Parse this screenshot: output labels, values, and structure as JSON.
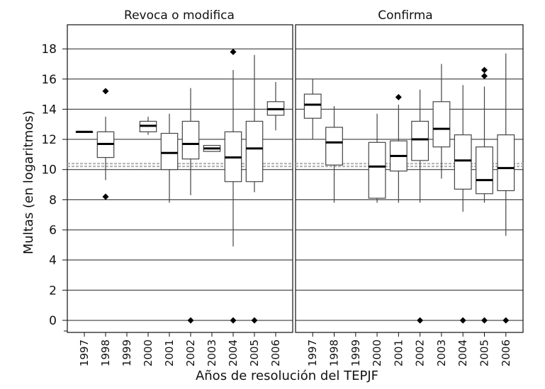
{
  "chart_data": {
    "type": "boxplot",
    "ylabel": "Multas (en logaritmos)",
    "xlabel": "Años de resolución del TEPJF",
    "ylim": [
      -0.8,
      19.6
    ],
    "yticks": [
      0,
      2,
      4,
      6,
      8,
      10,
      12,
      14,
      16,
      18
    ],
    "reference_line": 10.3,
    "grid": "horizontal",
    "categories": [
      "1997",
      "1998",
      "1999",
      "2000",
      "2001",
      "2002",
      "2003",
      "2004",
      "2005",
      "2006"
    ],
    "panels": [
      {
        "title": "Revoca o modifica",
        "boxes": [
          {
            "year": "1997",
            "min": 12.5,
            "q1": 12.5,
            "median": 12.5,
            "q3": 12.5,
            "max": 12.5,
            "outliers": []
          },
          {
            "year": "1998",
            "min": 9.3,
            "q1": 10.8,
            "median": 11.7,
            "q3": 12.5,
            "max": 13.5,
            "outliers": [
              15.2,
              8.2
            ]
          },
          {
            "year": "1999",
            "min": null,
            "q1": null,
            "median": null,
            "q3": null,
            "max": null,
            "outliers": []
          },
          {
            "year": "2000",
            "min": 12.3,
            "q1": 12.5,
            "median": 12.9,
            "q3": 13.2,
            "max": 13.5,
            "outliers": []
          },
          {
            "year": "2001",
            "min": 7.8,
            "q1": 10.0,
            "median": 11.1,
            "q3": 12.4,
            "max": 13.7,
            "outliers": []
          },
          {
            "year": "2002",
            "min": 8.3,
            "q1": 10.7,
            "median": 11.7,
            "q3": 13.2,
            "max": 15.4,
            "outliers": [
              0
            ]
          },
          {
            "year": "2003",
            "min": 11.2,
            "q1": 11.2,
            "median": 11.4,
            "q3": 11.6,
            "max": 11.6,
            "outliers": []
          },
          {
            "year": "2004",
            "min": 4.9,
            "q1": 9.2,
            "median": 10.8,
            "q3": 12.5,
            "max": 16.6,
            "outliers": [
              17.8,
              0
            ]
          },
          {
            "year": "2005",
            "min": 8.5,
            "q1": 9.2,
            "median": 11.4,
            "q3": 13.2,
            "max": 17.6,
            "outliers": [
              0
            ]
          },
          {
            "year": "2006",
            "min": 12.6,
            "q1": 13.6,
            "median": 14.0,
            "q3": 14.5,
            "max": 15.8,
            "outliers": []
          }
        ]
      },
      {
        "title": "Confirma",
        "boxes": [
          {
            "year": "1997",
            "min": 12.0,
            "q1": 13.4,
            "median": 14.3,
            "q3": 15.0,
            "max": 16.0,
            "outliers": []
          },
          {
            "year": "1998",
            "min": 7.8,
            "q1": 10.3,
            "median": 11.8,
            "q3": 12.8,
            "max": 14.2,
            "outliers": []
          },
          {
            "year": "1999",
            "min": null,
            "q1": null,
            "median": null,
            "q3": null,
            "max": null,
            "outliers": []
          },
          {
            "year": "2000",
            "min": 7.8,
            "q1": 8.1,
            "median": 10.2,
            "q3": 11.8,
            "max": 13.7,
            "outliers": []
          },
          {
            "year": "2001",
            "min": 7.8,
            "q1": 9.9,
            "median": 10.9,
            "q3": 11.9,
            "max": 14.3,
            "outliers": [
              14.8
            ]
          },
          {
            "year": "2002",
            "min": 7.8,
            "q1": 10.6,
            "median": 12.0,
            "q3": 13.2,
            "max": 15.3,
            "outliers": [
              0
            ]
          },
          {
            "year": "2003",
            "min": 9.4,
            "q1": 11.5,
            "median": 12.7,
            "q3": 14.5,
            "max": 17.0,
            "outliers": []
          },
          {
            "year": "2004",
            "min": 7.2,
            "q1": 8.7,
            "median": 10.6,
            "q3": 12.3,
            "max": 15.6,
            "outliers": [
              0
            ]
          },
          {
            "year": "2005",
            "min": 7.8,
            "q1": 8.4,
            "median": 9.3,
            "q3": 11.5,
            "max": 15.5,
            "outliers": [
              16.6,
              16.2,
              0
            ]
          },
          {
            "year": "2006",
            "min": 5.6,
            "q1": 8.6,
            "median": 10.1,
            "q3": 12.3,
            "max": 17.7,
            "outliers": [
              0
            ]
          }
        ]
      }
    ]
  }
}
